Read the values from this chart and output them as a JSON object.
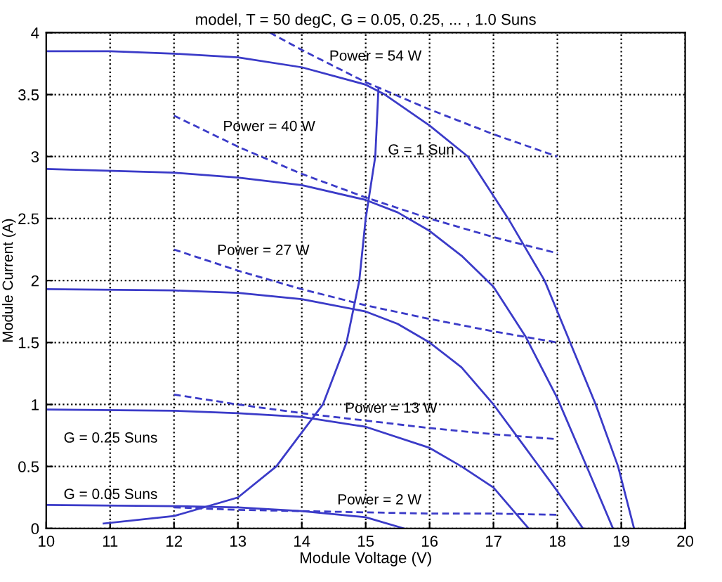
{
  "chart_data": {
    "type": "line",
    "title": "model, T = 50 degC, G = 0.05, 0.25, ... , 1.0 Suns",
    "xlabel": "Module Voltage (V)",
    "ylabel": "Module Current (A)",
    "series": [
      {
        "name": "G = 1 Sun",
        "color": "#3b3bc8",
        "line_style": "solid",
        "x": [
          10,
          11,
          12,
          13,
          14,
          15,
          15.3,
          16,
          16.6,
          17.23,
          17.8,
          18.2,
          18.6,
          18.95,
          19.2
        ],
        "values": [
          3.85,
          3.85,
          3.83,
          3.8,
          3.72,
          3.58,
          3.5,
          3.25,
          3.0,
          2.5,
          2.0,
          1.5,
          1.0,
          0.5,
          0
        ]
      },
      {
        "color": "#3b3bc8",
        "line_style": "solid",
        "x": [
          10,
          12,
          13,
          14,
          15,
          15.5,
          16,
          16.5,
          17,
          17.5,
          18,
          18.5,
          18.87
        ],
        "values": [
          2.9,
          2.87,
          2.83,
          2.77,
          2.65,
          2.55,
          2.4,
          2.2,
          1.95,
          1.55,
          1.05,
          0.45,
          0
        ]
      },
      {
        "color": "#3b3bc8",
        "line_style": "solid",
        "x": [
          10,
          12,
          13,
          14,
          15,
          15.5,
          16,
          16.5,
          17,
          17.5,
          18,
          18.4
        ],
        "values": [
          1.93,
          1.92,
          1.9,
          1.85,
          1.75,
          1.65,
          1.5,
          1.3,
          1.0,
          0.65,
          0.3,
          0
        ]
      },
      {
        "name": "G = 0.25 Suns",
        "color": "#3b3bc8",
        "line_style": "solid",
        "x": [
          10,
          12,
          13,
          14,
          15,
          16,
          16.5,
          17,
          17.55
        ],
        "values": [
          0.96,
          0.95,
          0.93,
          0.9,
          0.82,
          0.65,
          0.5,
          0.33,
          0
        ]
      },
      {
        "name": "G = 0.05 Suns",
        "color": "#3b3bc8",
        "line_style": "solid",
        "x": [
          10,
          12,
          13,
          14,
          15,
          15.6
        ],
        "values": [
          0.19,
          0.18,
          0.17,
          0.14,
          0.09,
          0
        ]
      },
      {
        "color": "#3b3bc8",
        "line_style": "solid",
        "x": [
          10.9,
          12,
          13,
          13.6,
          14.33,
          14.7,
          14.9,
          15.0,
          15.15,
          15.2
        ],
        "values": [
          0.04,
          0.1,
          0.25,
          0.5,
          1.0,
          1.5,
          2.0,
          2.5,
          3.0,
          3.55
        ]
      },
      {
        "name": "Power = 54 W",
        "color": "#3b3bc8",
        "line_style": "dashed",
        "x": [
          13.5,
          14,
          15,
          16,
          17,
          18
        ],
        "values": [
          4.0,
          3.86,
          3.6,
          3.38,
          3.18,
          3.0
        ]
      },
      {
        "name": "Power = 40 W",
        "color": "#3b3bc8",
        "line_style": "dashed",
        "x": [
          12,
          13,
          14,
          15,
          16,
          17,
          18
        ],
        "values": [
          3.33,
          3.08,
          2.86,
          2.67,
          2.5,
          2.35,
          2.22
        ]
      },
      {
        "name": "Power = 27 W",
        "color": "#3b3bc8",
        "line_style": "dashed",
        "x": [
          12,
          13,
          14,
          15,
          16,
          17,
          18
        ],
        "values": [
          2.25,
          2.08,
          1.93,
          1.8,
          1.69,
          1.59,
          1.5
        ]
      },
      {
        "name": "Power = 13 W",
        "color": "#3b3bc8",
        "line_style": "dashed",
        "x": [
          12,
          13,
          14,
          15,
          16,
          17,
          18
        ],
        "values": [
          1.08,
          1.0,
          0.93,
          0.87,
          0.81,
          0.76,
          0.72
        ]
      },
      {
        "name": "Power = 2 W",
        "color": "#3b3bc8",
        "line_style": "dashed",
        "x": [
          12,
          13,
          14,
          15,
          16,
          17,
          18
        ],
        "values": [
          0.17,
          0.15,
          0.14,
          0.13,
          0.12,
          0.12,
          0.11
        ]
      }
    ],
    "xlim": [
      10,
      20
    ],
    "ylim": [
      0,
      4
    ],
    "xticks": [
      10,
      11,
      12,
      13,
      14,
      15,
      16,
      17,
      18,
      19,
      20
    ],
    "yticks": [
      0,
      0.5,
      1,
      1.5,
      2,
      2.5,
      3,
      3.5,
      4
    ],
    "grid": true,
    "legend": false
  }
}
